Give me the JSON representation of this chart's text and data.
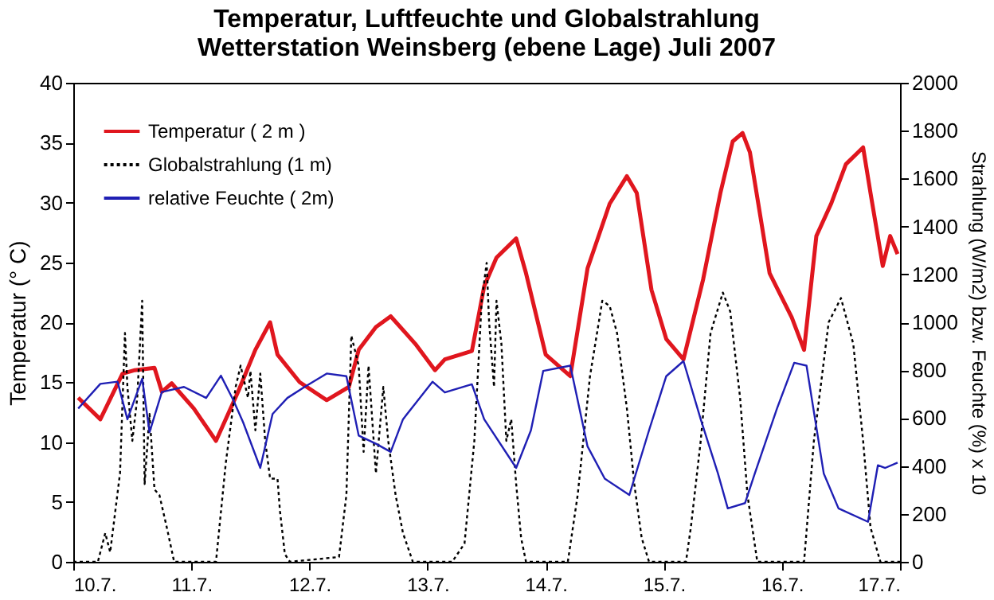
{
  "chart_data": {
    "type": "line",
    "title": "Temperatur, Luftfeuchte und Globalstrahlung",
    "subtitle": "Wetterstation Weinsberg (ebene Lage) Juli 2007",
    "ylabel": "Temperatur (° C)",
    "y2label": "Strahlung (W/m2) bzw. Feuchte (%) x 10",
    "xlim": [
      "2007-07-10",
      "2007-07-17"
    ],
    "xticks": [
      {
        "value": "2007-07-10",
        "label": "10.7."
      },
      {
        "value": "2007-07-11",
        "label": "11.7."
      },
      {
        "value": "2007-07-12",
        "label": "12.7."
      },
      {
        "value": "2007-07-13",
        "label": "13.7."
      },
      {
        "value": "2007-07-14",
        "label": "14.7."
      },
      {
        "value": "2007-07-15",
        "label": "15.7."
      },
      {
        "value": "2007-07-16",
        "label": "16.7."
      },
      {
        "value": "2007-07-17",
        "label": "17.7."
      }
    ],
    "ylim": [
      0,
      40
    ],
    "yticks": [
      0,
      5,
      10,
      15,
      20,
      25,
      30,
      35,
      40
    ],
    "y2lim": [
      0,
      2000
    ],
    "y2ticks": [
      0,
      200,
      400,
      600,
      800,
      1000,
      1200,
      1400,
      1600,
      1800,
      2000
    ],
    "legend": "top left",
    "grid": false,
    "series": [
      {
        "name": "Temperatur ( 2 m )",
        "color": "#e0161e",
        "line_style": "solid",
        "x": [
          "2007-07-10T01:00",
          "2007-07-10T05:30",
          "2007-07-10T10:00",
          "2007-07-10T12:30",
          "2007-07-10T16:30",
          "2007-07-10T18:00",
          "2007-07-10T20:00",
          "2007-07-11T00:30",
          "2007-07-11T05:00",
          "2007-07-11T09:30",
          "2007-07-11T13:00",
          "2007-07-11T16:00",
          "2007-07-11T17:30",
          "2007-07-11T22:00",
          "2007-07-12T03:30",
          "2007-07-12T08:00",
          "2007-07-12T10:00",
          "2007-07-12T13:30",
          "2007-07-12T16:30",
          "2007-07-12T21:30",
          "2007-07-13T01:30",
          "2007-07-13T03:30",
          "2007-07-13T09:00",
          "2007-07-13T11:30",
          "2007-07-13T14:00",
          "2007-07-13T18:00",
          "2007-07-13T20:00",
          "2007-07-14T00:00",
          "2007-07-14T05:00",
          "2007-07-14T08:30",
          "2007-07-14T13:00",
          "2007-07-14T16:30",
          "2007-07-14T18:30",
          "2007-07-14T21:30",
          "2007-07-15T00:30",
          "2007-07-15T04:00",
          "2007-07-15T08:00",
          "2007-07-15T11:30",
          "2007-07-15T14:00",
          "2007-07-15T16:00",
          "2007-07-15T17:30",
          "2007-07-15T21:30",
          "2007-07-16T02:00",
          "2007-07-16T04:30",
          "2007-07-16T07:00",
          "2007-07-16T10:00",
          "2007-07-16T13:00",
          "2007-07-16T16:30",
          "2007-07-16T18:00",
          "2007-07-16T20:30",
          "2007-07-16T22:00",
          "2007-07-16T23:30"
        ],
        "values": [
          13.7,
          11.9,
          15.7,
          16.0,
          16.2,
          14.2,
          14.9,
          12.8,
          10.1,
          14.2,
          17.7,
          20.0,
          17.3,
          15.0,
          13.5,
          14.6,
          17.7,
          19.6,
          20.5,
          18.2,
          16.0,
          16.9,
          17.6,
          23.0,
          25.4,
          27.0,
          24.1,
          17.3,
          15.5,
          24.5,
          29.9,
          32.2,
          30.8,
          22.7,
          18.6,
          16.9,
          23.6,
          30.8,
          35.1,
          35.8,
          34.2,
          24.1,
          20.4,
          17.7,
          27.2,
          29.9,
          33.2,
          34.6,
          30.8,
          24.7,
          27.2,
          25.7
        ]
      },
      {
        "name": "Globalstrahlung (1 m)",
        "color": "#000000",
        "line_style": "dotted",
        "axis": "y2",
        "x": [
          "2007-07-10T00:00",
          "2007-07-10T05:00",
          "2007-07-10T06:30",
          "2007-07-10T07:30",
          "2007-07-10T09:30",
          "2007-07-10T10:30",
          "2007-07-10T11:00",
          "2007-07-10T12:00",
          "2007-07-10T13:00",
          "2007-07-10T14:00",
          "2007-07-10T14:30",
          "2007-07-10T15:30",
          "2007-07-10T16:30",
          "2007-07-10T17:30",
          "2007-07-10T19:00",
          "2007-07-10T20:30",
          "2007-07-11T05:00",
          "2007-07-11T07:00",
          "2007-07-11T09:00",
          "2007-07-11T10:00",
          "2007-07-11T11:30",
          "2007-07-11T12:00",
          "2007-07-11T13:00",
          "2007-07-11T14:00",
          "2007-07-11T15:00",
          "2007-07-11T16:00",
          "2007-07-11T17:30",
          "2007-07-11T18:00",
          "2007-07-11T19:00",
          "2007-07-11T20:00",
          "2007-07-12T06:00",
          "2007-07-12T07:30",
          "2007-07-12T08:30",
          "2007-07-12T10:00",
          "2007-07-12T11:00",
          "2007-07-12T12:00",
          "2007-07-12T13:30",
          "2007-07-12T15:00",
          "2007-07-12T16:00",
          "2007-07-12T17:30",
          "2007-07-12T19:00",
          "2007-07-12T21:00",
          "2007-07-13T05:00",
          "2007-07-13T07:30",
          "2007-07-13T09:30",
          "2007-07-13T11:00",
          "2007-07-13T12:00",
          "2007-07-13T12:30",
          "2007-07-13T13:30",
          "2007-07-13T14:00",
          "2007-07-13T15:00",
          "2007-07-13T16:00",
          "2007-07-13T17:00",
          "2007-07-13T18:00",
          "2007-07-13T19:00",
          "2007-07-13T20:00",
          "2007-07-14T04:30",
          "2007-07-14T06:30",
          "2007-07-14T09:00",
          "2007-07-14T11:30",
          "2007-07-14T13:00",
          "2007-07-14T14:30",
          "2007-07-14T16:30",
          "2007-07-14T18:00",
          "2007-07-14T19:30",
          "2007-07-14T21:00",
          "2007-07-15T04:30",
          "2007-07-15T05:30",
          "2007-07-15T07:30",
          "2007-07-15T09:30",
          "2007-07-15T12:00",
          "2007-07-15T13:30",
          "2007-07-15T15:30",
          "2007-07-15T17:00",
          "2007-07-15T19:00",
          "2007-07-16T04:30",
          "2007-07-16T06:30",
          "2007-07-16T09:30",
          "2007-07-16T12:00",
          "2007-07-16T14:30",
          "2007-07-16T16:30",
          "2007-07-16T18:00",
          "2007-07-16T20:00",
          "2007-07-17T00:00"
        ],
        "values": [
          0,
          0,
          120,
          40,
          370,
          955,
          730,
          505,
          685,
          1090,
          325,
          617,
          302,
          279,
          144,
          0,
          0,
          414,
          730,
          819,
          685,
          797,
          549,
          786,
          505,
          347,
          347,
          212,
          32,
          0,
          20,
          279,
          944,
          819,
          459,
          819,
          369,
          730,
          505,
          279,
          120,
          0,
          0,
          76,
          505,
          1090,
          1248,
          1000,
          730,
          1090,
          910,
          505,
          595,
          325,
          100,
          0,
          0,
          279,
          775,
          1090,
          1068,
          955,
          640,
          325,
          100,
          0,
          0,
          144,
          505,
          955,
          1124,
          1045,
          685,
          279,
          0,
          0,
          505,
          1000,
          1101,
          910,
          505,
          144,
          0,
          0
        ]
      },
      {
        "name": "relative Feuchte ( 2m)",
        "color": "#1f1fb4",
        "line_style": "solid",
        "axis": "y2",
        "x": [
          "2007-07-10T01:00",
          "2007-07-10T05:30",
          "2007-07-10T09:00",
          "2007-07-10T11:00",
          "2007-07-10T14:00",
          "2007-07-10T15:30",
          "2007-07-10T18:00",
          "2007-07-10T22:30",
          "2007-07-11T03:00",
          "2007-07-11T06:00",
          "2007-07-11T08:30",
          "2007-07-11T10:30",
          "2007-07-11T14:00",
          "2007-07-11T16:30",
          "2007-07-11T19:30",
          "2007-07-11T23:00",
          "2007-07-12T03:30",
          "2007-07-12T07:30",
          "2007-07-12T10:00",
          "2007-07-12T13:30",
          "2007-07-12T16:30",
          "2007-07-12T19:00",
          "2007-07-13T01:00",
          "2007-07-13T03:30",
          "2007-07-13T09:00",
          "2007-07-13T11:30",
          "2007-07-13T18:00",
          "2007-07-13T21:00",
          "2007-07-13T23:30",
          "2007-07-14T05:00",
          "2007-07-14T08:30",
          "2007-07-14T12:00",
          "2007-07-14T17:00",
          "2007-07-14T21:00",
          "2007-07-15T00:30",
          "2007-07-15T04:00",
          "2007-07-15T07:30",
          "2007-07-15T11:00",
          "2007-07-15T13:00",
          "2007-07-15T16:30",
          "2007-07-15T18:30",
          "2007-07-15T23:00",
          "2007-07-16T02:30",
          "2007-07-16T05:00",
          "2007-07-16T08:30",
          "2007-07-16T11:30",
          "2007-07-16T17:30",
          "2007-07-16T19:30",
          "2007-07-16T21:00",
          "2007-07-16T23:30"
        ],
        "values": [
          640,
          743,
          752,
          595,
          764,
          541,
          709,
          730,
          684,
          777,
          676,
          583,
          392,
          617,
          684,
          730,
          786,
          775,
          527,
          493,
          459,
          595,
          752,
          707,
          741,
          595,
          392,
          549,
          797,
          819,
          482,
          347,
          279,
          549,
          775,
          838,
          595,
          369,
          223,
          245,
          369,
          640,
          831,
          819,
          369,
          223,
          167,
          403,
          392,
          414
        ]
      }
    ]
  }
}
